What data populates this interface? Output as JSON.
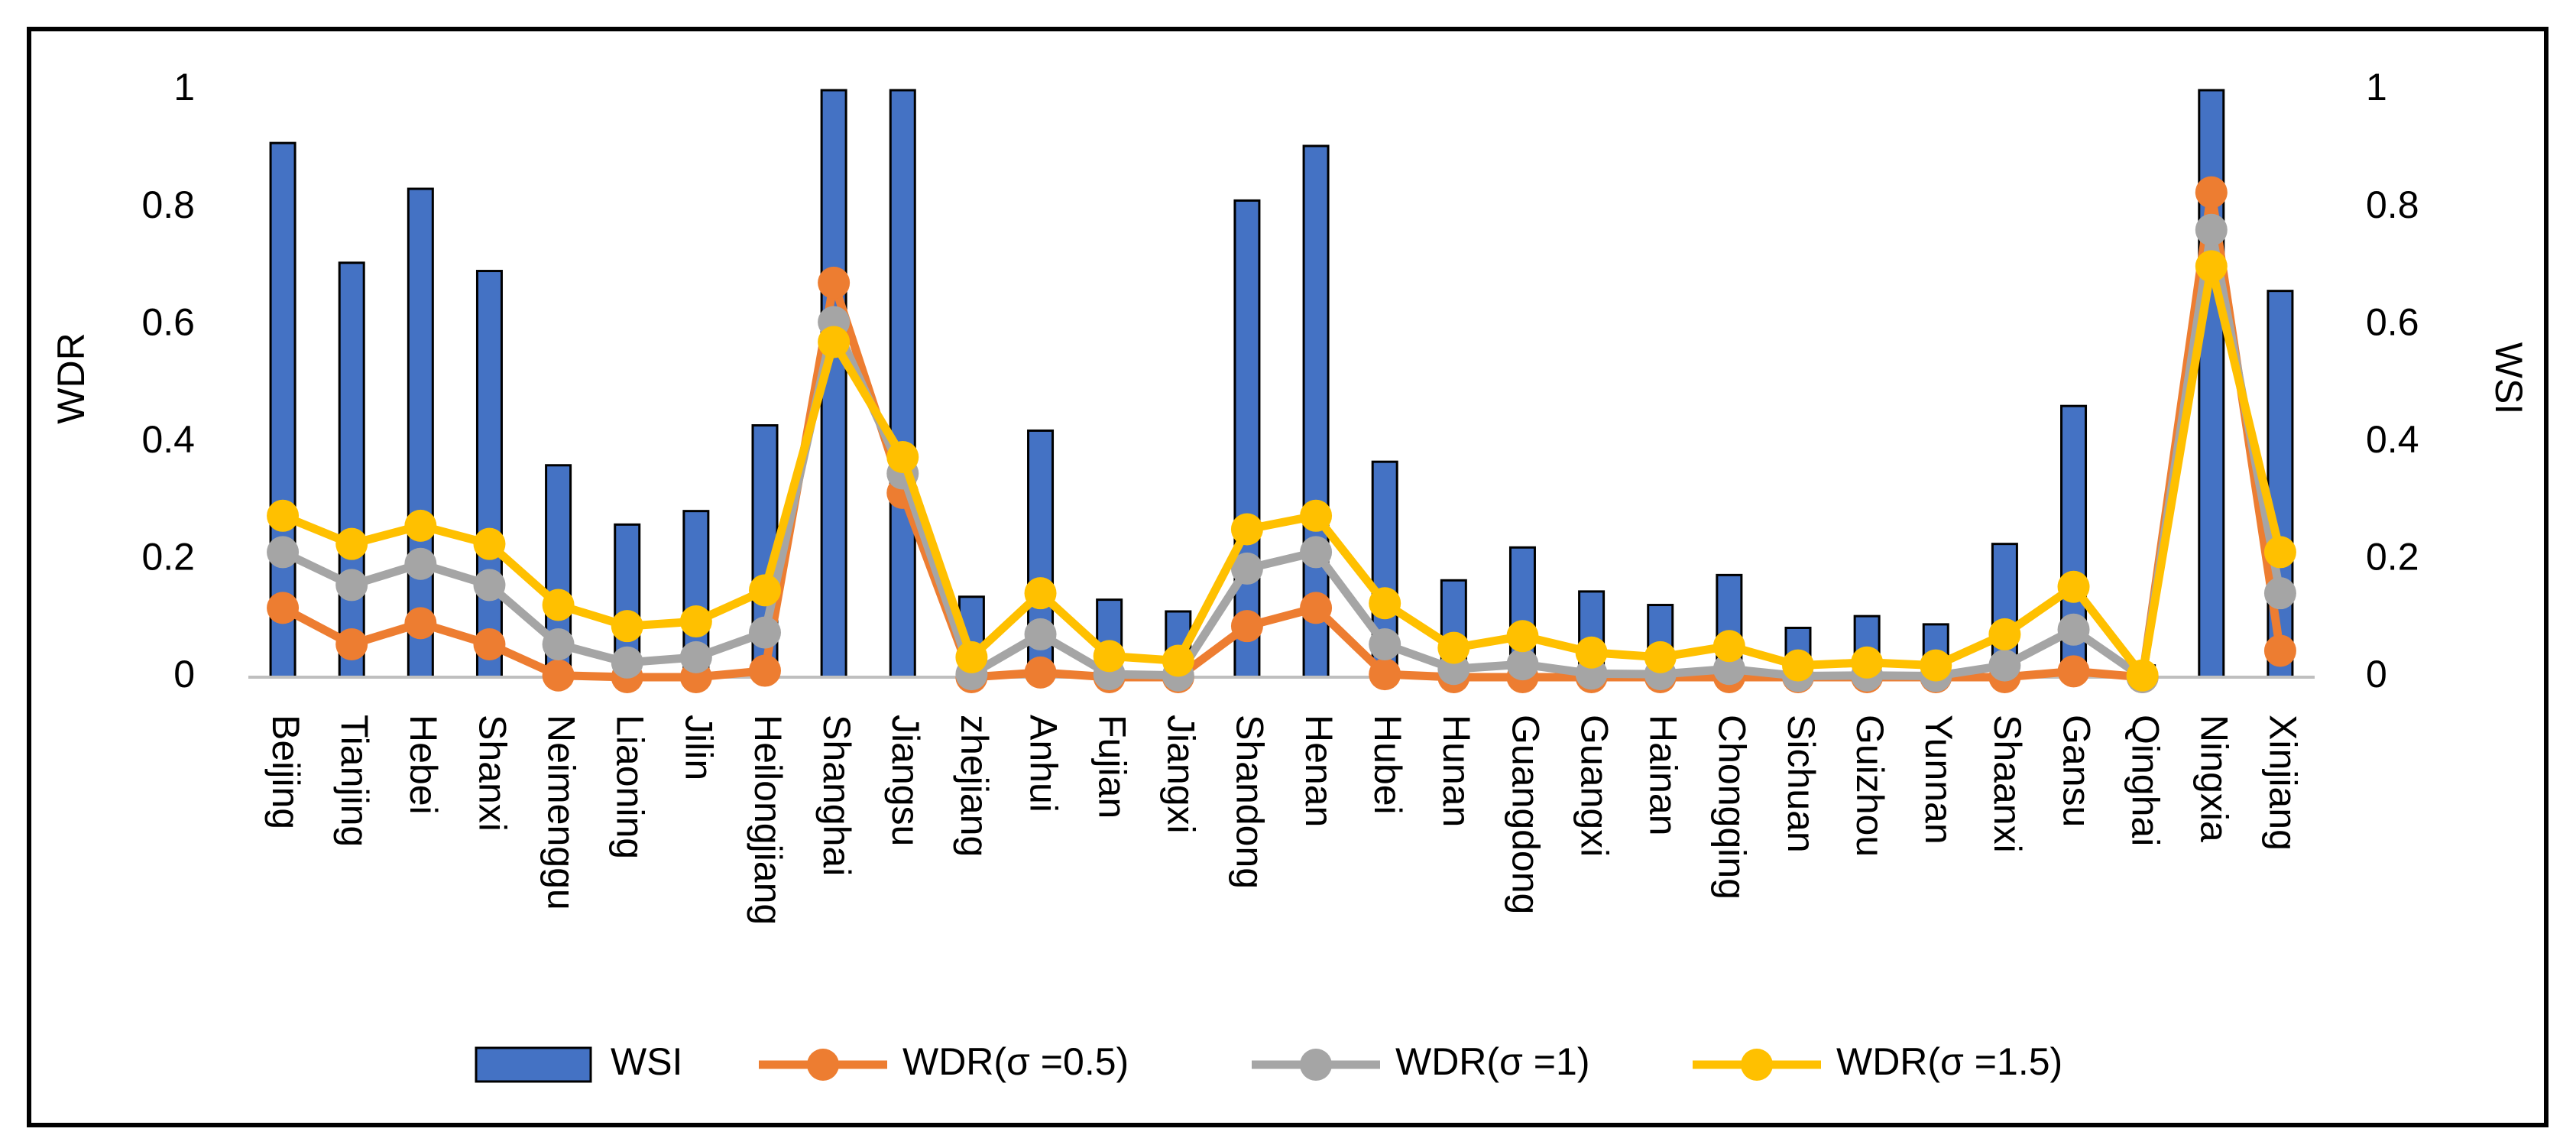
{
  "chart_data": {
    "type": "combo",
    "y_label": "WDR",
    "y2_label": "WSI",
    "categories": [
      "Beijing",
      "Tianjing",
      "Hebei",
      "Shanxi",
      "Neimenggu",
      "Liaoning",
      "Jilin",
      "Heilongjiang",
      "Shanghai",
      "Jiangsu",
      "zhejiang",
      "Anhui",
      "Fujian",
      "Jiangxi",
      "Shandong",
      "Henan",
      "Hubei",
      "Hunan",
      "Guangdong",
      "Guangxi",
      "Hainan",
      "Chongqing",
      "Sichuan",
      "Guizhou",
      "Yunnan",
      "Shaanxi",
      "Gansu",
      "Qinghai",
      "Ningxia",
      "Xinjiang"
    ],
    "ylim": [
      0,
      1
    ],
    "yticks": [
      0,
      0.2,
      0.4,
      0.6,
      0.8,
      1
    ],
    "y2lim": [
      0,
      1
    ],
    "y2ticks": [
      0,
      0.2,
      0.4,
      0.6,
      0.8,
      1
    ],
    "series": [
      {
        "name": "WSI",
        "type": "bar",
        "axis": "y2",
        "color": "#4472c4",
        "values": [
          0.91,
          0.706,
          0.832,
          0.692,
          0.361,
          0.26,
          0.283,
          0.429,
          1,
          1,
          0.137,
          0.42,
          0.132,
          0.112,
          0.812,
          0.905,
          0.367,
          0.165,
          0.221,
          0.146,
          0.123,
          0.174,
          0.084,
          0.104,
          0.09,
          0.227,
          0.462,
          0.02,
          1,
          0.658
        ]
      },
      {
        "name": "WDR(σ =0.5)",
        "type": "line",
        "color": "#ed7d31",
        "values": [
          0.118,
          0.056,
          0.092,
          0.056,
          0.003,
          0,
          0,
          0.011,
          0.672,
          0.314,
          0,
          0.008,
          0,
          0,
          0.087,
          0.118,
          0.005,
          0,
          0,
          0,
          0,
          0,
          0,
          0,
          0,
          0,
          0.01,
          0,
          0.826,
          0.045
        ]
      },
      {
        "name": "WDR(σ =1)",
        "type": "line",
        "color": "#a5a5a5",
        "values": [
          0.213,
          0.157,
          0.193,
          0.157,
          0.056,
          0.025,
          0.034,
          0.076,
          0.605,
          0.347,
          0.005,
          0.073,
          0.005,
          0.003,
          0.185,
          0.213,
          0.056,
          0.014,
          0.022,
          0.006,
          0.005,
          0.014,
          0.002,
          0.003,
          0.002,
          0.02,
          0.081,
          0,
          0.762,
          0.143
        ]
      },
      {
        "name": "WDR(σ =1.5)",
        "type": "line",
        "color": "#ffc000",
        "values": [
          0.275,
          0.227,
          0.258,
          0.227,
          0.123,
          0.087,
          0.095,
          0.148,
          0.571,
          0.375,
          0.034,
          0.143,
          0.036,
          0.028,
          0.252,
          0.275,
          0.126,
          0.05,
          0.07,
          0.042,
          0.034,
          0.053,
          0.02,
          0.025,
          0.02,
          0.073,
          0.154,
          0.003,
          0.7,
          0.213
        ]
      }
    ]
  }
}
